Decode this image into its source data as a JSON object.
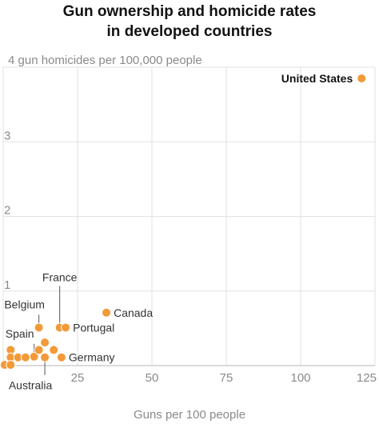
{
  "chart_data": {
    "type": "scatter",
    "title_lines": [
      "Gun ownership and homicide rates",
      "in developed countries"
    ],
    "xlabel": "Guns per 100 people",
    "ylabel": "gun homicides per 100,000 people",
    "xlim": [
      0,
      125
    ],
    "ylim": [
      0,
      4
    ],
    "xticks": [
      25,
      50,
      75,
      100,
      125
    ],
    "yticks": [
      1,
      2,
      3,
      4
    ],
    "grid": true,
    "color": "#f29a38",
    "points": [
      {
        "x": 120.5,
        "y": 3.85,
        "label": "United States",
        "bold": true
      },
      {
        "x": 34.7,
        "y": 0.71,
        "label": "Canada"
      },
      {
        "x": 19.0,
        "y": 0.51,
        "label": "France"
      },
      {
        "x": 21.0,
        "y": 0.51,
        "label": "Portugal"
      },
      {
        "x": 12.0,
        "y": 0.51,
        "label": "Belgium"
      },
      {
        "x": 10.4,
        "y": 0.12,
        "label": "Spain"
      },
      {
        "x": 14.0,
        "y": 0.11,
        "label": "Australia"
      },
      {
        "x": 19.6,
        "y": 0.11,
        "label": "Germany"
      },
      {
        "x": 14.0,
        "y": 0.31,
        "label": ""
      },
      {
        "x": 12.0,
        "y": 0.21,
        "label": ""
      },
      {
        "x": 17.0,
        "y": 0.21,
        "label": ""
      },
      {
        "x": 2.5,
        "y": 0.21,
        "label": ""
      },
      {
        "x": 2.5,
        "y": 0.11,
        "label": ""
      },
      {
        "x": 5.0,
        "y": 0.11,
        "label": ""
      },
      {
        "x": 7.5,
        "y": 0.11,
        "label": ""
      },
      {
        "x": 0.5,
        "y": 0.01,
        "label": ""
      },
      {
        "x": 2.5,
        "y": 0.01,
        "label": ""
      }
    ]
  }
}
